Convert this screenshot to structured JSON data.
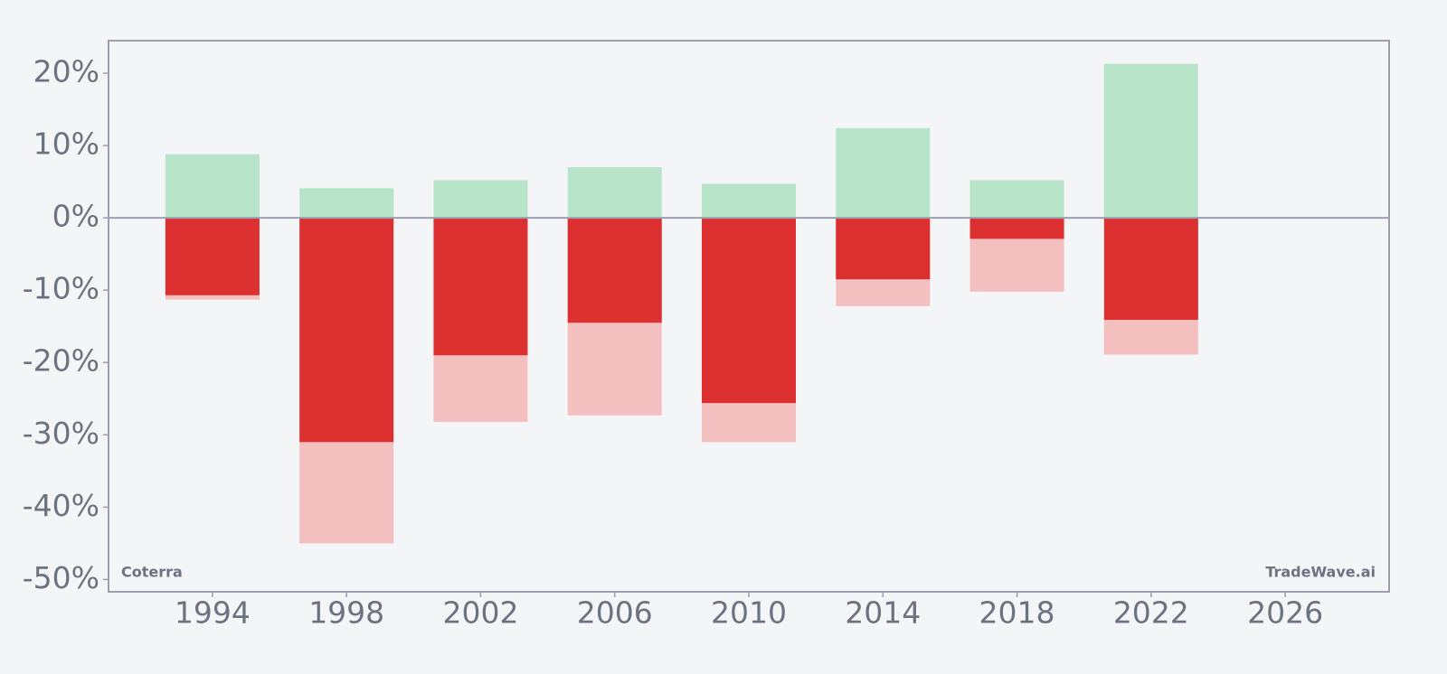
{
  "chart_data": {
    "type": "bar",
    "x": [
      1994,
      1998,
      2002,
      2006,
      2010,
      2014,
      2018,
      2022
    ],
    "series": [
      {
        "color": "#f4bfbf",
        "values": [
          -11.3,
          -45.0,
          -28.2,
          -27.3,
          -31.0,
          -12.2,
          -10.2,
          -18.9
        ]
      },
      {
        "color": "#dc3030",
        "values": [
          -10.7,
          -31.0,
          -19.0,
          -14.5,
          -25.6,
          -8.5,
          -2.9,
          -14.1
        ]
      },
      {
        "color": "#b8e4c9",
        "values": [
          8.8,
          4.1,
          5.2,
          7.0,
          4.7,
          12.4,
          5.2,
          21.3
        ]
      }
    ],
    "xlim": [
      1990.9,
      2029.1
    ],
    "xticks": [
      1994,
      1998,
      2002,
      2006,
      2010,
      2014,
      2018,
      2022,
      2026
    ],
    "ylim": [
      -51.7,
      24.5
    ],
    "yticks": [
      {
        "value": -50,
        "label": "-50%"
      },
      {
        "value": -40,
        "label": "-40%"
      },
      {
        "value": -30,
        "label": "-30%"
      },
      {
        "value": -20,
        "label": "-20%"
      },
      {
        "value": -10,
        "label": "-10%"
      },
      {
        "value": 0,
        "label": "0%"
      },
      {
        "value": 10,
        "label": "10%"
      },
      {
        "value": 20,
        "label": "20%"
      }
    ],
    "annotations": [
      "Coterra",
      "TradeWave.ai"
    ]
  }
}
